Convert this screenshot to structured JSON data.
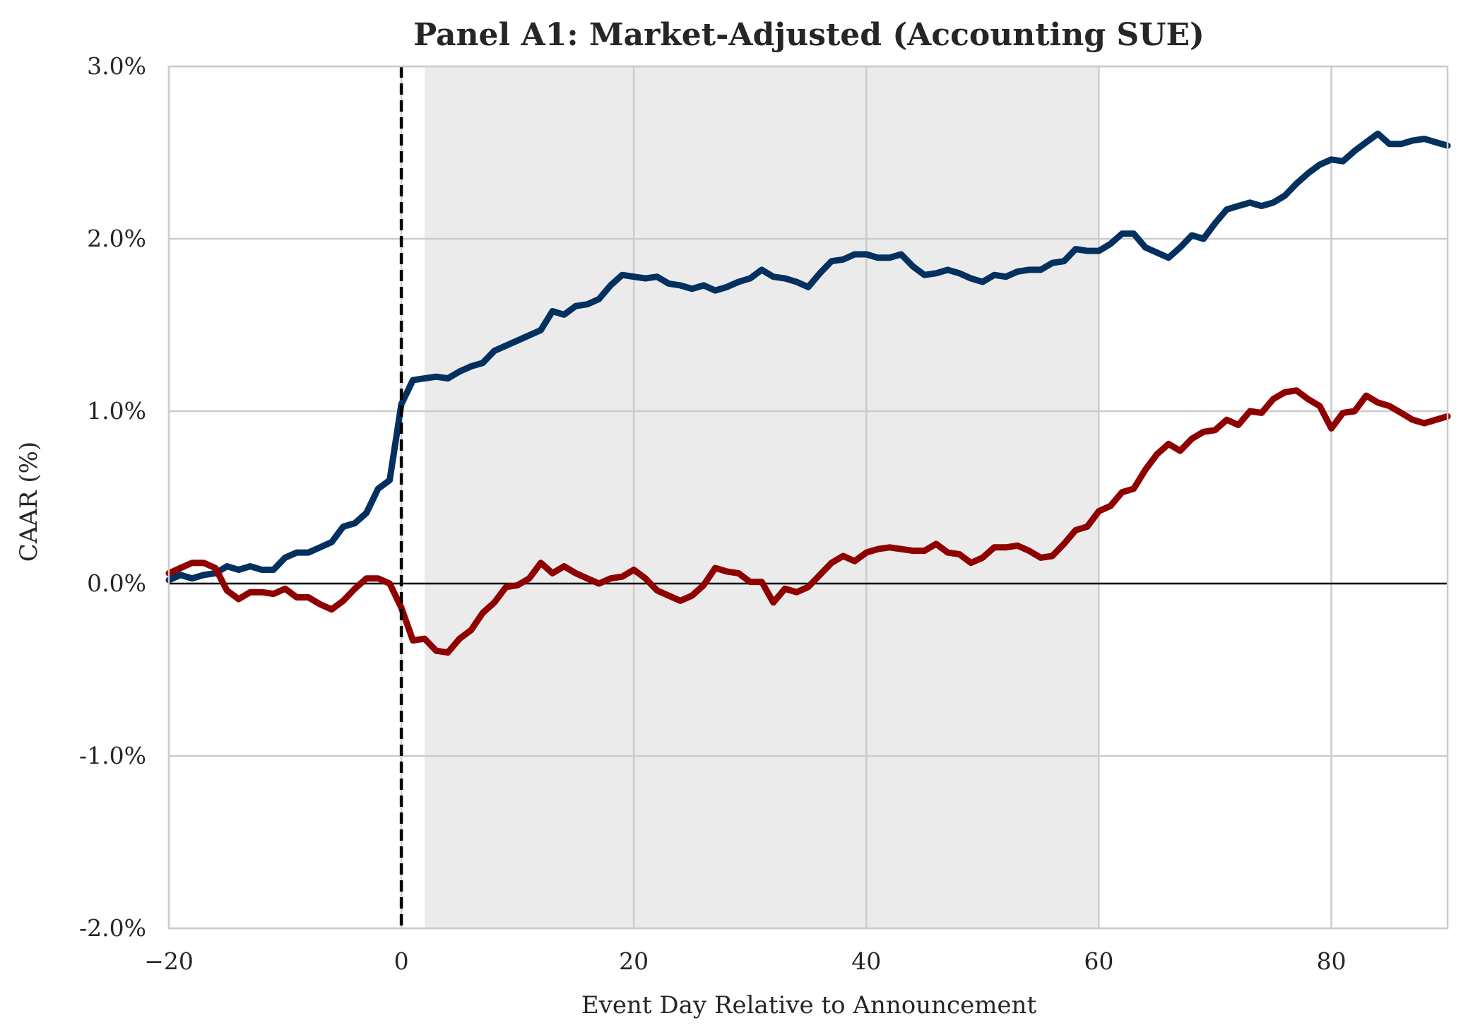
{
  "chart_data": {
    "type": "line",
    "title": "Panel A1: Market-Adjusted (Accounting SUE)",
    "xlabel": "Event Day Relative to Announcement",
    "ylabel": "CAAR (%)",
    "xlim": [
      -20,
      90
    ],
    "ylim": [
      -2.0,
      3.0
    ],
    "xticks": [
      -20,
      0,
      20,
      40,
      60,
      80
    ],
    "yticks": [
      -2.0,
      -1.0,
      0.0,
      1.0,
      2.0,
      3.0
    ],
    "xtick_labels": [
      "−20",
      "0",
      "20",
      "40",
      "60",
      "80"
    ],
    "ytick_labels": [
      "-2.0%",
      "-1.0%",
      "0.0%",
      "1.0%",
      "2.0%",
      "3.0%"
    ],
    "grid": true,
    "shaded_region": {
      "x_start": 2,
      "x_end": 60,
      "color": "#ebebeb"
    },
    "event_line": {
      "x": 0,
      "style": "dashed",
      "color": "#000000"
    },
    "zero_line": {
      "y": 0,
      "color": "#000000"
    },
    "x": [
      -20,
      -19,
      -18,
      -17,
      -16,
      -15,
      -14,
      -13,
      -12,
      -11,
      -10,
      -9,
      -8,
      -7,
      -6,
      -5,
      -4,
      -3,
      -2,
      -1,
      0,
      1,
      2,
      3,
      4,
      5,
      6,
      7,
      8,
      9,
      10,
      11,
      12,
      13,
      14,
      15,
      16,
      17,
      18,
      19,
      20,
      21,
      22,
      23,
      24,
      25,
      26,
      27,
      28,
      29,
      30,
      31,
      32,
      33,
      34,
      35,
      36,
      37,
      38,
      39,
      40,
      41,
      42,
      43,
      44,
      45,
      46,
      47,
      48,
      49,
      50,
      51,
      52,
      53,
      54,
      55,
      56,
      57,
      58,
      59,
      60,
      61,
      62,
      63,
      64,
      65,
      66,
      67,
      68,
      69,
      70,
      71,
      72,
      73,
      74,
      75,
      76,
      77,
      78,
      79,
      80,
      81,
      82,
      83,
      84,
      85,
      86,
      87,
      88,
      89,
      90
    ],
    "series": [
      {
        "color": "#03305f",
        "values": [
          0.02,
          0.05,
          0.03,
          0.05,
          0.06,
          0.1,
          0.08,
          0.1,
          0.08,
          0.08,
          0.15,
          0.18,
          0.18,
          0.21,
          0.24,
          0.33,
          0.35,
          0.41,
          0.55,
          0.6,
          1.04,
          1.18,
          1.19,
          1.2,
          1.19,
          1.23,
          1.26,
          1.28,
          1.35,
          1.38,
          1.41,
          1.44,
          1.47,
          1.58,
          1.56,
          1.61,
          1.62,
          1.65,
          1.73,
          1.79,
          1.78,
          1.77,
          1.78,
          1.74,
          1.73,
          1.71,
          1.73,
          1.7,
          1.72,
          1.75,
          1.77,
          1.82,
          1.78,
          1.77,
          1.75,
          1.72,
          1.8,
          1.87,
          1.88,
          1.91,
          1.91,
          1.89,
          1.89,
          1.91,
          1.84,
          1.79,
          1.8,
          1.82,
          1.8,
          1.77,
          1.75,
          1.79,
          1.78,
          1.81,
          1.82,
          1.82,
          1.86,
          1.87,
          1.94,
          1.93,
          1.93,
          1.97,
          2.03,
          2.03,
          1.95,
          1.92,
          1.89,
          1.95,
          2.02,
          2.0,
          2.09,
          2.17,
          2.19,
          2.21,
          2.19,
          2.21,
          2.25,
          2.32,
          2.38,
          2.43,
          2.46,
          2.45,
          2.51,
          2.56,
          2.61,
          2.55,
          2.55,
          2.57,
          2.58,
          2.56,
          2.54
        ]
      },
      {
        "color": "#8f0000",
        "values": [
          0.06,
          0.09,
          0.12,
          0.12,
          0.09,
          -0.04,
          -0.09,
          -0.05,
          -0.05,
          -0.06,
          -0.03,
          -0.08,
          -0.08,
          -0.12,
          -0.15,
          -0.1,
          -0.03,
          0.03,
          0.03,
          0.0,
          -0.14,
          -0.33,
          -0.32,
          -0.39,
          -0.4,
          -0.32,
          -0.27,
          -0.17,
          -0.11,
          -0.02,
          -0.01,
          0.03,
          0.12,
          0.06,
          0.1,
          0.06,
          0.03,
          0.0,
          0.03,
          0.04,
          0.08,
          0.03,
          -0.04,
          -0.07,
          -0.1,
          -0.07,
          -0.01,
          0.09,
          0.07,
          0.06,
          0.01,
          0.01,
          -0.11,
          -0.03,
          -0.05,
          -0.02,
          0.05,
          0.12,
          0.16,
          0.13,
          0.18,
          0.2,
          0.21,
          0.2,
          0.19,
          0.19,
          0.23,
          0.18,
          0.17,
          0.12,
          0.15,
          0.21,
          0.21,
          0.22,
          0.19,
          0.15,
          0.16,
          0.23,
          0.31,
          0.33,
          0.42,
          0.45,
          0.53,
          0.55,
          0.66,
          0.75,
          0.81,
          0.77,
          0.84,
          0.88,
          0.89,
          0.95,
          0.92,
          1.0,
          0.99,
          1.07,
          1.11,
          1.12,
          1.07,
          1.03,
          0.9,
          0.99,
          1.0,
          1.09,
          1.05,
          1.03,
          0.99,
          0.95,
          0.93,
          0.95,
          0.97
        ]
      }
    ]
  }
}
